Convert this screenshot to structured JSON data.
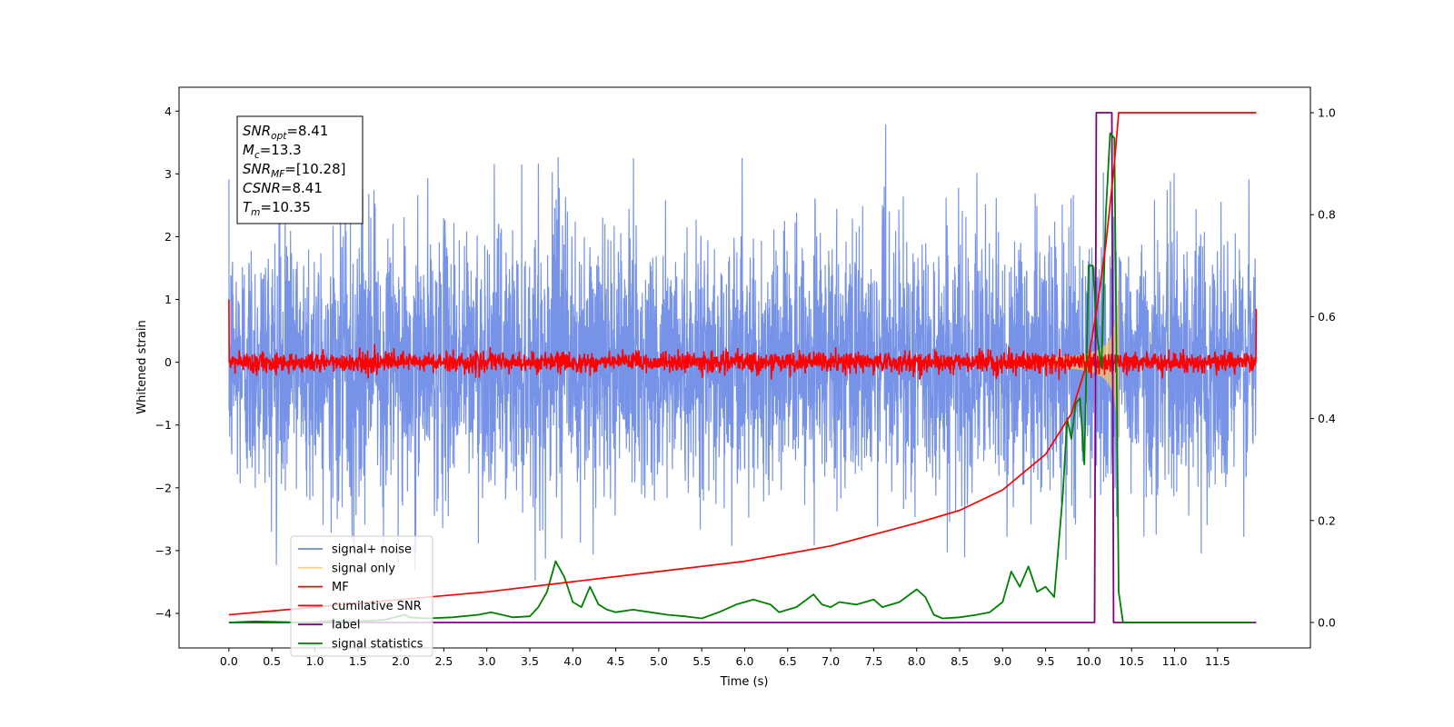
{
  "chart_data": {
    "type": "line",
    "title": "",
    "xlabel": "Time (s)",
    "ylabel": "Whitened strain",
    "xlim": [
      -0.58,
      12.58
    ],
    "ylim": [
      -4.55,
      4.38
    ],
    "y2lim": [
      -0.05,
      1.05
    ],
    "x_ticks": [
      "0.0",
      "0.5",
      "1.0",
      "1.5",
      "2.0",
      "2.5",
      "3.0",
      "3.5",
      "4.0",
      "4.5",
      "5.0",
      "5.5",
      "6.0",
      "6.5",
      "7.0",
      "7.5",
      "8.0",
      "8.5",
      "9.0",
      "9.5",
      "10.0",
      "10.5",
      "11.0",
      "11.5"
    ],
    "y_ticks": [
      "4",
      "3",
      "2",
      "1",
      "0",
      "−1",
      "−2",
      "−3",
      "−4"
    ],
    "y2_ticks": [
      "1.0",
      "0.8",
      "0.6",
      "0.4",
      "0.2",
      "0.0"
    ],
    "annotation": [
      {
        "sym": "SNR",
        "sub": "opt",
        "val": "=8.41"
      },
      {
        "sym": "M",
        "sub": "c",
        "val": "=13.3"
      },
      {
        "sym": "SNR",
        "sub": "MF",
        "val": "=[10.28]"
      },
      {
        "sym": "CSNR",
        "sub": "",
        "val": "=8.41"
      },
      {
        "sym": "T",
        "sub": "m",
        "val": "=10.35"
      }
    ],
    "legend_position": "lower-left",
    "series": [
      {
        "name": "signal+ noise",
        "color": "#6a8ae6",
        "axis": "left",
        "kind": "noise",
        "sigma": 1.05,
        "range": [
          -3.5,
          4.0
        ]
      },
      {
        "name": "signal only",
        "color": "#f5c36b",
        "axis": "left",
        "kind": "chirp",
        "merger_time": 10.35,
        "peak_amplitude": 1.45
      },
      {
        "name": "MF",
        "color": "#ff0000",
        "axis": "left",
        "kind": "mf_noise",
        "sigma": 0.08
      },
      {
        "name": "cumilative SNR",
        "color": "#ff0000",
        "axis": "right",
        "x": [
          0.0,
          1.0,
          2.0,
          3.0,
          4.0,
          5.0,
          6.0,
          7.0,
          8.0,
          8.5,
          9.0,
          9.5,
          9.8,
          10.0,
          10.1,
          10.2,
          10.3,
          10.35,
          11.95
        ],
        "y": [
          0.015,
          0.03,
          0.045,
          0.06,
          0.08,
          0.1,
          0.12,
          0.15,
          0.195,
          0.22,
          0.26,
          0.33,
          0.41,
          0.52,
          0.62,
          0.74,
          0.9,
          1.0,
          1.0
        ]
      },
      {
        "name": "label",
        "color": "#800080",
        "axis": "right",
        "x": [
          0.0,
          10.07,
          10.09,
          10.27,
          10.29,
          11.95
        ],
        "y": [
          0.0,
          0.0,
          1.0,
          1.0,
          0.0,
          0.0
        ]
      },
      {
        "name": "signal statistics",
        "color": "#008000",
        "axis": "right",
        "x": [
          0.0,
          0.3,
          0.6,
          0.9,
          1.2,
          1.5,
          1.8,
          2.05,
          2.1,
          2.3,
          2.6,
          2.9,
          3.05,
          3.3,
          3.5,
          3.6,
          3.7,
          3.8,
          3.9,
          4.0,
          4.1,
          4.2,
          4.3,
          4.4,
          4.5,
          4.7,
          4.9,
          5.1,
          5.3,
          5.5,
          5.7,
          5.9,
          6.0,
          6.1,
          6.3,
          6.4,
          6.5,
          6.6,
          6.8,
          6.9,
          7.0,
          7.1,
          7.3,
          7.5,
          7.6,
          7.8,
          8.0,
          8.1,
          8.2,
          8.3,
          8.5,
          8.7,
          8.85,
          9.0,
          9.1,
          9.2,
          9.3,
          9.4,
          9.5,
          9.6,
          9.7,
          9.75,
          9.8,
          9.85,
          9.9,
          9.95,
          10.0,
          10.05,
          10.1,
          10.15,
          10.2,
          10.25,
          10.3,
          10.35,
          10.4,
          11.9
        ],
        "y": [
          0.0,
          0.002,
          0.001,
          0.0,
          0.003,
          0.002,
          0.005,
          0.015,
          0.01,
          0.008,
          0.01,
          0.015,
          0.02,
          0.01,
          0.012,
          0.03,
          0.06,
          0.12,
          0.09,
          0.04,
          0.03,
          0.07,
          0.035,
          0.025,
          0.02,
          0.025,
          0.02,
          0.015,
          0.012,
          0.008,
          0.02,
          0.035,
          0.04,
          0.045,
          0.035,
          0.02,
          0.025,
          0.03,
          0.055,
          0.035,
          0.03,
          0.04,
          0.035,
          0.045,
          0.03,
          0.04,
          0.065,
          0.05,
          0.015,
          0.008,
          0.01,
          0.015,
          0.02,
          0.04,
          0.1,
          0.07,
          0.11,
          0.06,
          0.07,
          0.05,
          0.25,
          0.4,
          0.36,
          0.43,
          0.44,
          0.31,
          0.7,
          0.7,
          0.56,
          0.5,
          0.8,
          0.96,
          0.95,
          0.06,
          0.0,
          0.0
        ]
      }
    ]
  }
}
